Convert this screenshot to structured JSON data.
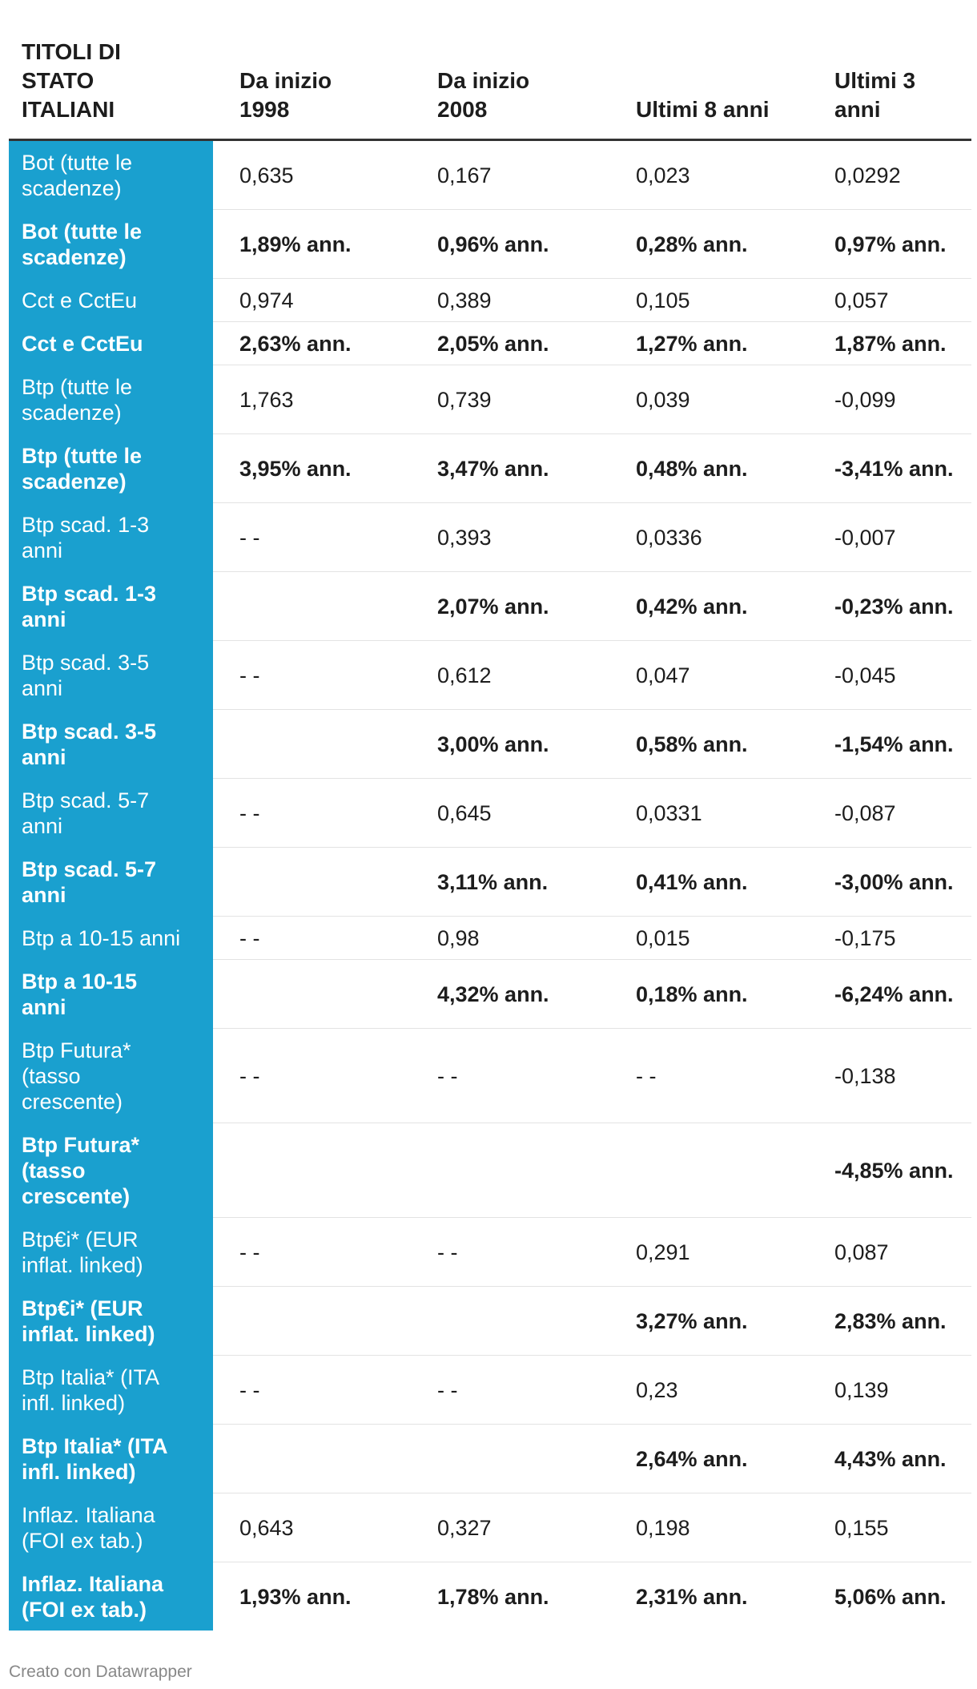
{
  "colors": {
    "label-column": "#1aa0cf",
    "label-text": "#ffffff",
    "text": "#1d1d1d",
    "header-rule": "#333333",
    "row-rule": "#e3e3e3",
    "footer-text": "#888888"
  },
  "chart_data": {
    "type": "table",
    "columns": [
      "TITOLI DI STATO ITALIANI",
      "Da inizio 1998",
      "Da inizio 2008",
      "Ultimi 8 anni",
      "Ultimi 3 anni"
    ],
    "rows": [
      {
        "label": "Bot (tutte le scadenze)",
        "values": [
          "0,635",
          "0,167",
          "0,023",
          "0,0292"
        ]
      },
      {
        "label": "Bot (tutte le scadenze)",
        "values": [
          "1,89% ann.",
          "0,96% ann.",
          "0,28% ann.",
          "0,97% ann."
        ]
      },
      {
        "label": "Cct e CctEu",
        "values": [
          "0,974",
          "0,389",
          "0,105",
          "0,057"
        ]
      },
      {
        "label": "Cct e CctEu",
        "values": [
          "2,63% ann.",
          "2,05% ann.",
          "1,27% ann.",
          "1,87% ann."
        ]
      },
      {
        "label": "Btp (tutte le scadenze)",
        "values": [
          "1,763",
          "0,739",
          "0,039",
          "-0,099"
        ]
      },
      {
        "label": "Btp (tutte le scadenze)",
        "values": [
          "3,95% ann.",
          "3,47% ann.",
          "0,48% ann.",
          "-3,41% ann."
        ]
      },
      {
        "label": "Btp scad. 1-3 anni",
        "values": [
          "- -",
          "0,393",
          "0,0336",
          "-0,007"
        ]
      },
      {
        "label": "Btp scad. 1-3 anni",
        "values": [
          "",
          "2,07% ann.",
          "0,42% ann.",
          "-0,23% ann."
        ]
      },
      {
        "label": "Btp scad. 3-5 anni",
        "values": [
          "- -",
          "0,612",
          "0,047",
          "-0,045"
        ]
      },
      {
        "label": "Btp scad. 3-5 anni",
        "values": [
          "",
          "3,00% ann.",
          "0,58% ann.",
          "-1,54% ann."
        ]
      },
      {
        "label": "Btp scad. 5-7 anni",
        "values": [
          "- -",
          "0,645",
          "0,0331",
          "-0,087"
        ]
      },
      {
        "label": "Btp scad. 5-7 anni",
        "values": [
          "",
          "3,11% ann.",
          "0,41% ann.",
          "-3,00% ann."
        ]
      },
      {
        "label": "Btp a 10-15 anni",
        "values": [
          "- -",
          "0,98",
          "0,015",
          "-0,175"
        ]
      },
      {
        "label": "Btp a 10-15 anni",
        "values": [
          "",
          "4,32% ann.",
          "0,18% ann.",
          "-6,24% ann."
        ]
      },
      {
        "label": "Btp Futura* (tasso crescente)",
        "values": [
          "- -",
          "- -",
          "- -",
          "-0,138"
        ]
      },
      {
        "label": "Btp Futura* (tasso crescente)",
        "values": [
          "",
          "",
          "",
          "-4,85% ann."
        ]
      },
      {
        "label": "Btp€i* (EUR inflat. linked)",
        "values": [
          "- -",
          "- -",
          "0,291",
          "0,087"
        ]
      },
      {
        "label": "Btp€i* (EUR inflat. linked)",
        "values": [
          "",
          "",
          "3,27% ann.",
          "2,83% ann."
        ]
      },
      {
        "label": "Btp Italia* (ITA infl. linked)",
        "values": [
          "- -",
          "- -",
          "0,23",
          "0,139"
        ]
      },
      {
        "label": "Btp Italia* (ITA infl. linked)",
        "values": [
          "",
          "",
          "2,64% ann.",
          "4,43% ann."
        ]
      },
      {
        "label": "Inflaz. Italiana (FOI ex tab.)",
        "values": [
          "0,643",
          "0,327",
          "0,198",
          "0,155"
        ]
      },
      {
        "label": "Inflaz. Italiana (FOI ex tab.)",
        "values": [
          "1,93% ann.",
          "1,78% ann.",
          "2,31% ann.",
          "5,06% ann."
        ]
      }
    ]
  },
  "footer": {
    "credit": "Creato con Datawrapper"
  }
}
